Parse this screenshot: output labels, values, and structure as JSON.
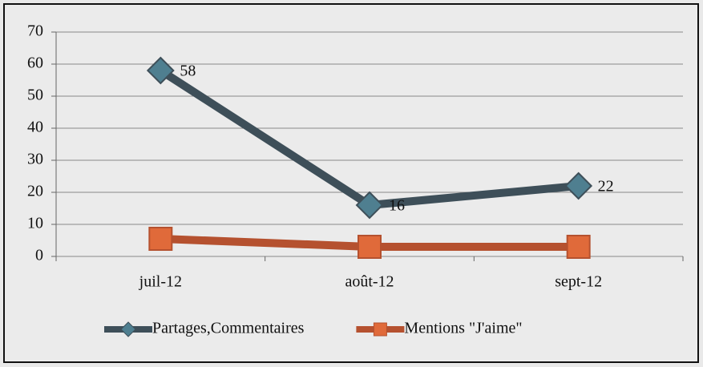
{
  "chart_data": {
    "type": "line",
    "categories": [
      "juil-12",
      "août-12",
      "sept-12"
    ],
    "series": [
      {
        "name": "Partages,Commentaires",
        "color": "#3e4f59",
        "marker": "diamond",
        "marker_color": "#4f7f90",
        "data_labels": true,
        "values": [
          58,
          16,
          22
        ]
      },
      {
        "name": "Mentions \"J'aime\"",
        "color": "#b5512f",
        "marker": "square",
        "marker_color": "#e06a3a",
        "data_labels": false,
        "values": [
          5.5,
          3,
          3
        ]
      }
    ],
    "ylim": [
      0,
      70
    ],
    "yticks": [
      0,
      10,
      20,
      30,
      40,
      50,
      60,
      70
    ],
    "grid": true,
    "legend": "bottom"
  }
}
